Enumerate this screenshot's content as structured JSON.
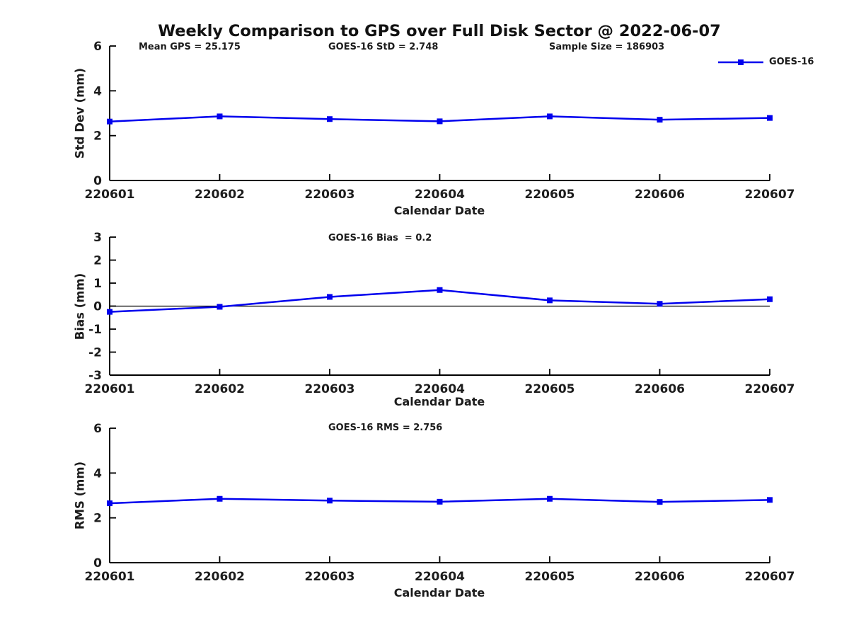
{
  "title": "Weekly Comparison to GPS over Full Disk Sector @ 2022-06-07",
  "legend": {
    "label": "GOES-16"
  },
  "xlabel": "Calendar Date",
  "colors": {
    "series_line": "#0000ee",
    "axis": "#000000",
    "text": "#1c1c1c",
    "background": "#ffffff"
  },
  "chart_data": [
    {
      "type": "line",
      "panel": "std-dev",
      "ylabel": "Std Dev (mm)",
      "xlabel": "Calendar Date",
      "ylim": [
        0,
        6
      ],
      "yticks": [
        0,
        2,
        4,
        6
      ],
      "grid": false,
      "legend_position": "top-right",
      "annotations": [
        "Mean GPS = 25.175",
        "GOES-16 StD = 2.748",
        "Sample Size = 186903"
      ],
      "categories": [
        "220601",
        "220602",
        "220603",
        "220604",
        "220605",
        "220606",
        "220607"
      ],
      "series": [
        {
          "name": "GOES-16",
          "marker": "square",
          "values": [
            2.63,
            2.86,
            2.74,
            2.64,
            2.86,
            2.71,
            2.79
          ]
        }
      ]
    },
    {
      "type": "line",
      "panel": "bias",
      "ylabel": "Bias (mm)",
      "xlabel": "Calendar Date",
      "ylim": [
        -3,
        3
      ],
      "yticks": [
        3,
        2,
        1,
        0,
        -1,
        -2,
        -3
      ],
      "zero_line": true,
      "grid": false,
      "annotations": [
        "GOES-16 Bias  = 0.2"
      ],
      "categories": [
        "220601",
        "220602",
        "220603",
        "220604",
        "220605",
        "220606",
        "220607"
      ],
      "series": [
        {
          "name": "GOES-16",
          "marker": "square",
          "values": [
            -0.25,
            -0.03,
            0.4,
            0.7,
            0.25,
            0.1,
            0.3
          ]
        }
      ]
    },
    {
      "type": "line",
      "panel": "rms",
      "ylabel": "RMS (mm)",
      "xlabel": "Calendar Date",
      "ylim": [
        0,
        6
      ],
      "yticks": [
        0,
        2,
        4,
        6
      ],
      "grid": false,
      "annotations": [
        "GOES-16 RMS = 2.756"
      ],
      "categories": [
        "220601",
        "220602",
        "220603",
        "220604",
        "220605",
        "220606",
        "220607"
      ],
      "series": [
        {
          "name": "GOES-16",
          "marker": "square",
          "values": [
            2.65,
            2.85,
            2.77,
            2.72,
            2.85,
            2.71,
            2.8
          ]
        }
      ]
    }
  ]
}
